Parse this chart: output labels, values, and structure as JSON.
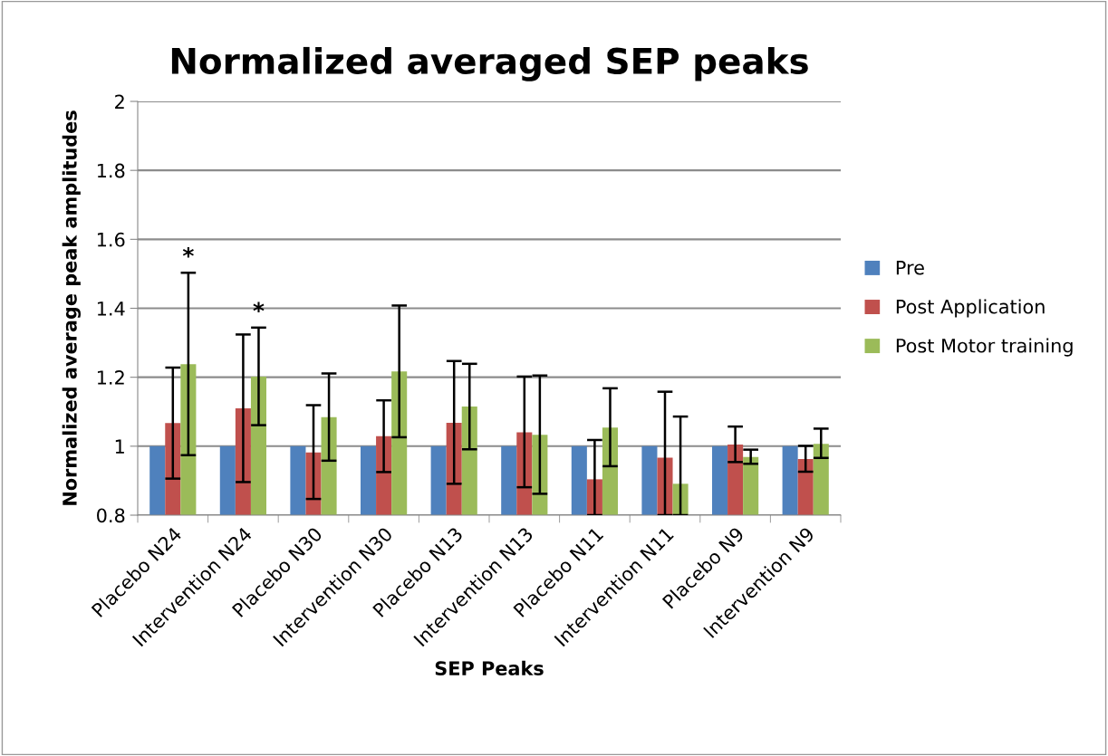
{
  "chart_data": {
    "type": "bar",
    "title": "Normalized averaged SEP peaks",
    "xlabel": "SEP Peaks",
    "ylabel": "Normalized average peak amplitudes",
    "categories": [
      "Placebo N24",
      "Intervention N24",
      "Placebo N30",
      "Intervention N30",
      "Placebo N13",
      "Intervention N13",
      "Placebo N11",
      "Intervention N11",
      "Placebo N9",
      "Intervention N9"
    ],
    "series": [
      {
        "name": "Pre",
        "color": "#4f81bd",
        "values": [
          1,
          1,
          1,
          1,
          1,
          1,
          1,
          1,
          1,
          1
        ]
      },
      {
        "name": "Post Application",
        "color": "#c0504d",
        "values": [
          1.067,
          1.11,
          0.982,
          1.029,
          1.068,
          1.04,
          0.904,
          0.967,
          1.005,
          0.963
        ],
        "errors": [
          [
            0.906,
            1.228
          ],
          [
            0.896,
            1.324
          ],
          [
            0.847,
            1.119
          ],
          [
            0.925,
            1.133
          ],
          [
            0.891,
            1.247
          ],
          [
            0.881,
            1.202
          ],
          [
            0.8,
            1.018
          ],
          [
            0.8,
            1.158
          ],
          [
            0.954,
            1.057
          ],
          [
            0.926,
            1.001
          ]
        ]
      },
      {
        "name": "Post Motor training",
        "color": "#9bbb59",
        "values": [
          1.238,
          1.202,
          1.084,
          1.217,
          1.115,
          1.033,
          1.054,
          0.891,
          0.969,
          1.007
        ],
        "errors": [
          [
            0.974,
            1.503
          ],
          [
            1.061,
            1.344
          ],
          [
            0.958,
            1.211
          ],
          [
            1.026,
            1.408
          ],
          [
            0.991,
            1.239
          ],
          [
            0.862,
            1.205
          ],
          [
            0.942,
            1.168
          ],
          [
            0.8,
            1.086
          ],
          [
            0.949,
            0.99
          ],
          [
            0.966,
            1.051
          ]
        ]
      }
    ],
    "ylim": [
      0.8,
      2
    ],
    "yticks": [
      0.8,
      1,
      1.2,
      1.4,
      1.6,
      1.8,
      2
    ],
    "grid": "y",
    "legend": "right",
    "annotations": [
      "*",
      "*"
    ]
  }
}
